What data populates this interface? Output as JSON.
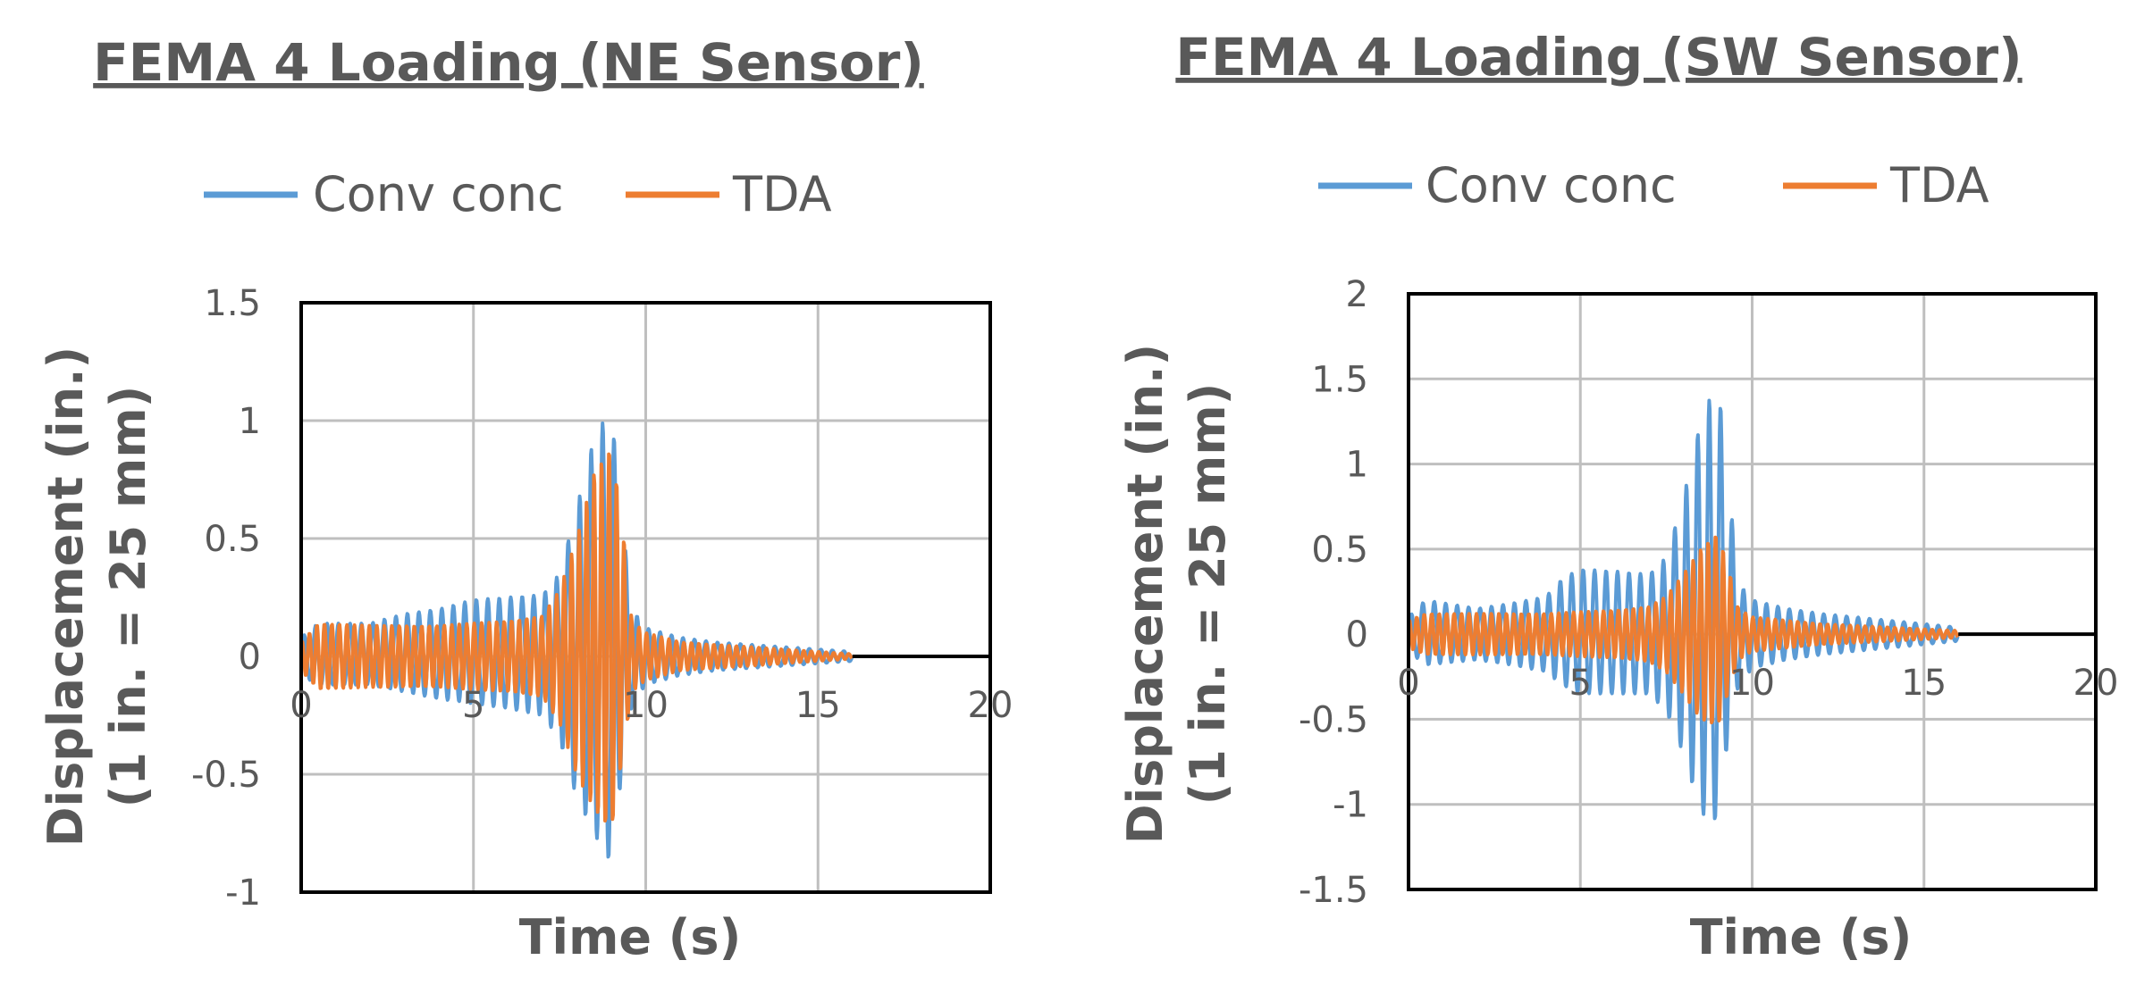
{
  "chart_data": [
    {
      "type": "line",
      "title": "FEMA 4 Loading (NE Sensor)",
      "xlabel": "Time (s)",
      "ylabel_line1": "Displacement (in.)",
      "ylabel_line2": "(1 in. = 25 mm)",
      "xlim": [
        0,
        20
      ],
      "ylim": [
        -1,
        1.5
      ],
      "x_ticks": [
        "0",
        "5",
        "10",
        "15",
        "20"
      ],
      "y_ticks": [
        "-1",
        "-0.5",
        "0",
        "0.5",
        "1",
        "1.5"
      ],
      "grid": true,
      "legend_position": "top",
      "duration": 16,
      "series": [
        {
          "name": "Conv conc",
          "color": "#5B9BD5",
          "envelope_t": [
            0,
            0.5,
            2,
            3,
            4,
            5,
            6,
            7,
            7.5,
            8,
            8.5,
            9,
            9.3,
            9.6,
            10,
            11,
            12,
            13,
            14,
            15,
            16
          ],
          "envelope_upper": [
            0.08,
            0.14,
            0.14,
            0.18,
            0.2,
            0.24,
            0.25,
            0.26,
            0.35,
            0.63,
            0.93,
            1.05,
            0.6,
            0.2,
            0.12,
            0.08,
            0.06,
            0.05,
            0.04,
            0.03,
            0.02
          ],
          "envelope_lower": [
            -0.08,
            -0.12,
            -0.12,
            -0.15,
            -0.18,
            -0.2,
            -0.22,
            -0.25,
            -0.35,
            -0.6,
            -0.75,
            -0.88,
            -0.5,
            -0.2,
            -0.12,
            -0.08,
            -0.06,
            -0.05,
            -0.04,
            -0.03,
            -0.02
          ]
        },
        {
          "name": "TDA",
          "color": "#ED7D31",
          "envelope_t": [
            0,
            0.5,
            2,
            3,
            4,
            5,
            6,
            7,
            7.5,
            8,
            8.5,
            9,
            9.3,
            9.6,
            10,
            11,
            12,
            13,
            14,
            15,
            16
          ],
          "envelope_upper": [
            0.06,
            0.14,
            0.13,
            0.13,
            0.13,
            0.14,
            0.15,
            0.17,
            0.28,
            0.5,
            0.78,
            0.9,
            0.6,
            0.15,
            0.1,
            0.06,
            0.05,
            0.04,
            0.03,
            0.02,
            0.01
          ],
          "envelope_lower": [
            -0.06,
            -0.14,
            -0.13,
            -0.13,
            -0.13,
            -0.14,
            -0.15,
            -0.17,
            -0.28,
            -0.5,
            -0.65,
            -0.75,
            -0.45,
            -0.15,
            -0.1,
            -0.06,
            -0.05,
            -0.04,
            -0.03,
            -0.02,
            -0.01
          ]
        }
      ]
    },
    {
      "type": "line",
      "title": "FEMA 4 Loading (SW Sensor)",
      "xlabel": "Time (s)",
      "ylabel_line1": "Displacement (in.)",
      "ylabel_line2": "(1 in. = 25 mm)",
      "xlim": [
        0,
        20
      ],
      "ylim": [
        -1.5,
        2
      ],
      "x_ticks": [
        "0",
        "5",
        "10",
        "15",
        "20"
      ],
      "y_ticks": [
        "-1.5",
        "-1",
        "-0.5",
        "0",
        "0.5",
        "1",
        "1.5",
        "2"
      ],
      "grid": true,
      "legend_position": "top",
      "duration": 16,
      "series": [
        {
          "name": "Conv conc",
          "color": "#5B9BD5",
          "envelope_t": [
            0,
            0.5,
            2,
            3,
            4,
            4.5,
            5,
            6,
            7,
            7.5,
            8,
            8.5,
            9,
            9.3,
            9.6,
            10,
            11,
            12,
            13,
            14,
            15,
            16
          ],
          "envelope_upper": [
            0.1,
            0.2,
            0.15,
            0.18,
            0.22,
            0.33,
            0.38,
            0.37,
            0.35,
            0.45,
            0.8,
            1.25,
            1.5,
            0.9,
            0.3,
            0.2,
            0.15,
            0.12,
            0.1,
            0.08,
            0.06,
            0.04
          ],
          "envelope_lower": [
            -0.1,
            -0.18,
            -0.15,
            -0.18,
            -0.22,
            -0.3,
            -0.35,
            -0.35,
            -0.35,
            -0.45,
            -0.7,
            -1.05,
            -1.1,
            -0.6,
            -0.3,
            -0.2,
            -0.15,
            -0.12,
            -0.1,
            -0.08,
            -0.06,
            -0.04
          ]
        },
        {
          "name": "TDA",
          "color": "#ED7D31",
          "envelope_t": [
            0,
            0.5,
            2,
            3,
            4,
            5,
            6,
            7,
            7.5,
            8,
            8.5,
            9,
            9.3,
            9.6,
            10,
            11,
            12,
            13,
            14,
            15,
            16
          ],
          "envelope_upper": [
            0.08,
            0.12,
            0.12,
            0.12,
            0.12,
            0.13,
            0.14,
            0.16,
            0.22,
            0.35,
            0.5,
            0.6,
            0.4,
            0.15,
            0.1,
            0.08,
            0.06,
            0.05,
            0.04,
            0.03,
            0.02
          ],
          "envelope_lower": [
            -0.08,
            -0.12,
            -0.12,
            -0.12,
            -0.12,
            -0.13,
            -0.14,
            -0.16,
            -0.22,
            -0.35,
            -0.5,
            -0.55,
            -0.35,
            -0.15,
            -0.1,
            -0.08,
            -0.06,
            -0.05,
            -0.04,
            -0.03,
            -0.02
          ]
        }
      ]
    }
  ]
}
